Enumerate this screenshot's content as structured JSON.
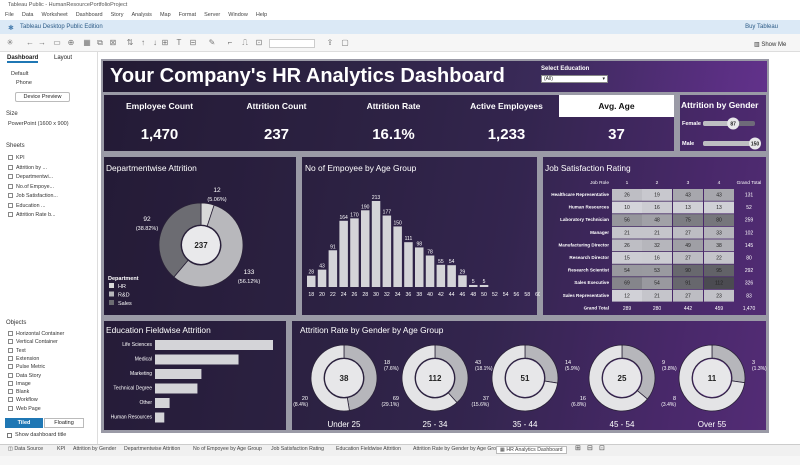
{
  "window_title": "Tableau Public - HumanResourcePortfolioProject",
  "menu": [
    "File",
    "Data",
    "Worksheet",
    "Dashboard",
    "Story",
    "Analysis",
    "Map",
    "Format",
    "Server",
    "Window",
    "Help"
  ],
  "edition": "Tableau Desktop Public Edition",
  "buy_label": "Buy Tableau",
  "show_me": "Show Me",
  "left_panel": {
    "tab_dashboard": "Dashboard",
    "tab_layout": "Layout",
    "devices": [
      "Default",
      "Phone"
    ],
    "device_preview": "Device Preview",
    "size_label": "Size",
    "size_value": "PowerPoint (1600 x 900)",
    "sheets_label": "Sheets",
    "sheets": [
      "KPI",
      "Attrition by ...",
      "Departmentwi...",
      "No.of Empoye...",
      "Job Satisfaction...",
      "Education ...",
      "Attrition Rate b..."
    ],
    "objects_label": "Objects",
    "objects": [
      "Horizontal Container",
      "Vertical Container",
      "Text",
      "Extension",
      "Pulse Metric",
      "Data Story",
      "Image",
      "Blank",
      "Workflow",
      "Web Page"
    ],
    "tiled": "Tiled",
    "floating": "Floating",
    "show_title": "Show dashboard title"
  },
  "dashboard": {
    "title": "Your Company's HR Analytics Dashboard",
    "select_label": "Select Education",
    "select_value": "(All)",
    "kpis": [
      {
        "label": "Employee Count",
        "value": "1,470"
      },
      {
        "label": "Attrition Count",
        "value": "237"
      },
      {
        "label": "Attrition Rate",
        "value": "16.1%"
      },
      {
        "label": "Active Employees",
        "value": "1,233"
      },
      {
        "label": "Avg. Age",
        "value": "37"
      }
    ],
    "gender_title": "Attrition by Gender",
    "gender": [
      {
        "label": "Female",
        "value": 87
      },
      {
        "label": "Male",
        "value": 150
      }
    ],
    "dept_title": "Departmentwise Attrition",
    "dept_center": "237",
    "dept_legend_title": "Department",
    "dept_legend": [
      "HR",
      "R&D",
      "Sales"
    ],
    "dept_labels": [
      {
        "count": "12",
        "pct": "(5.06%)"
      },
      {
        "count": "133",
        "pct": "(56.12%)"
      },
      {
        "count": "92",
        "pct": "(38.82%)"
      }
    ],
    "age_title": "No of Empoyee by Age Group",
    "jobsat_title": "Job Satisfaction Rating",
    "jobsat_header": [
      "Job Role",
      "1",
      "2",
      "3",
      "4",
      "Grand Total"
    ],
    "jobsat_rows": [
      [
        "Healthcare Representative",
        "26",
        "19",
        "43",
        "43",
        "131"
      ],
      [
        "Human Resources",
        "10",
        "16",
        "13",
        "13",
        "52"
      ],
      [
        "Laboratory Technician",
        "56",
        "48",
        "75",
        "80",
        "259"
      ],
      [
        "Manager",
        "21",
        "21",
        "27",
        "33",
        "102"
      ],
      [
        "Manufacturing Director",
        "26",
        "32",
        "49",
        "38",
        "145"
      ],
      [
        "Research Director",
        "15",
        "16",
        "27",
        "22",
        "80"
      ],
      [
        "Research Scientist",
        "54",
        "53",
        "90",
        "95",
        "292"
      ],
      [
        "Sales Executive",
        "69",
        "54",
        "91",
        "112",
        "326"
      ],
      [
        "Sales Representative",
        "12",
        "21",
        "27",
        "23",
        "83"
      ],
      [
        "Grand Total",
        "289",
        "280",
        "442",
        "459",
        "1,470"
      ]
    ],
    "edu_title": "Education Fieldwise Attrition",
    "rate_title": "Attrition Rate by Gender by Age Group",
    "age_donuts": [
      {
        "label": "Under 25",
        "center": "38",
        "a": "18",
        "ap": "(7.6%)",
        "b": "20",
        "bp": "(8.4%)"
      },
      {
        "label": "25 - 34",
        "center": "112",
        "a": "43",
        "ap": "(18.1%)",
        "b": "69",
        "bp": "(29.1%)"
      },
      {
        "label": "35 - 44",
        "center": "51",
        "a": "14",
        "ap": "(5.9%)",
        "b": "37",
        "bp": "(15.6%)"
      },
      {
        "label": "45 - 54",
        "center": "25",
        "a": "9",
        "ap": "(3.8%)",
        "b": "16",
        "bp": "(6.8%)"
      },
      {
        "label": "Over 55",
        "center": "11",
        "a": "3",
        "ap": "(1.3%)",
        "b": "8",
        "bp": "(3.4%)"
      }
    ]
  },
  "tabs": [
    "Data Source",
    "KPI",
    "Attrition by Gender",
    "Departmentwise Attrition",
    "No of Empoyee by Age Group",
    "Job Satisfaction Rating",
    "Education Fieldwise Attrition",
    "Attrition Rate by Gender by Age Group",
    "HR Analytics Dashboard"
  ],
  "chart_data": [
    {
      "type": "bar",
      "title": "No of Empoyee by Age Group",
      "categories": [
        "18",
        "20",
        "22",
        "24",
        "26",
        "28",
        "30",
        "32",
        "34",
        "36",
        "38",
        "40",
        "42",
        "44",
        "46",
        "48",
        "50",
        "52",
        "54",
        "56",
        "58",
        "60"
      ],
      "values": [
        28,
        43,
        91,
        164,
        170,
        190,
        213,
        177,
        150,
        111,
        98,
        78,
        55,
        54,
        29,
        5,
        5,
        0,
        0,
        0,
        0,
        0
      ]
    },
    {
      "type": "bar",
      "title": "Education Fieldwise Attrition",
      "categories": [
        "Life Sciences",
        "Medical",
        "Marketing",
        "Technical Degree",
        "Other",
        "Human Resources"
      ],
      "values": [
        89,
        63,
        35,
        32,
        11,
        7
      ]
    },
    {
      "type": "pie",
      "title": "Departmentwise Attrition",
      "categories": [
        "HR",
        "R&D",
        "Sales"
      ],
      "values": [
        12,
        133,
        92
      ]
    },
    {
      "type": "bar",
      "title": "Attrition by Gender",
      "categories": [
        "Female",
        "Male"
      ],
      "values": [
        87,
        150
      ]
    }
  ]
}
